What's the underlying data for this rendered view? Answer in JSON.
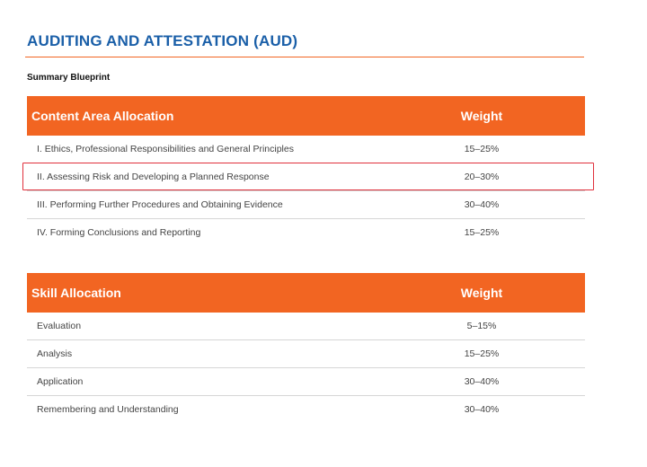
{
  "title": "AUDITING AND ATTESTATION (AUD)",
  "subtitle": "Summary Blueprint",
  "content_table": {
    "header": {
      "area": "Content Area Allocation",
      "weight": "Weight"
    },
    "rows": [
      {
        "area": "I. Ethics, Professional Responsibilities and General Principles",
        "weight": "15–25%"
      },
      {
        "area": "II. Assessing Risk and Developing a Planned Response",
        "weight": "20–30%"
      },
      {
        "area": "III. Performing Further Procedures and Obtaining Evidence",
        "weight": "30–40%"
      },
      {
        "area": "IV. Forming Conclusions and Reporting",
        "weight": "15–25%"
      }
    ]
  },
  "skill_table": {
    "header": {
      "area": "Skill Allocation",
      "weight": "Weight"
    },
    "rows": [
      {
        "area": "Evaluation",
        "weight": "5–15%"
      },
      {
        "area": "Analysis",
        "weight": "15–25%"
      },
      {
        "area": "Application",
        "weight": "30–40%"
      },
      {
        "area": "Remembering and Understanding",
        "weight": "30–40%"
      }
    ]
  },
  "colors": {
    "accent": "#f26522",
    "title": "#1a5fa8",
    "highlight": "#e0303c"
  }
}
